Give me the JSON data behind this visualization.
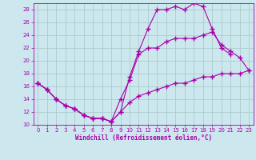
{
  "xlabel": "Windchill (Refroidissement éolien,°C)",
  "bg_color": "#cce8ee",
  "grid_color": "#aacccc",
  "line_color": "#aa00aa",
  "xlim": [
    -0.5,
    23.5
  ],
  "ylim": [
    10,
    29
  ],
  "xticks": [
    0,
    1,
    2,
    3,
    4,
    5,
    6,
    7,
    8,
    9,
    10,
    11,
    12,
    13,
    14,
    15,
    16,
    17,
    18,
    19,
    20,
    21,
    22,
    23
  ],
  "yticks": [
    10,
    12,
    14,
    16,
    18,
    20,
    22,
    24,
    26,
    28
  ],
  "line1_x": [
    0,
    1,
    2,
    3,
    4,
    5,
    6,
    7,
    8,
    9,
    10,
    11,
    12,
    13,
    14,
    15,
    16,
    17,
    18,
    19,
    20,
    21
  ],
  "line1_y": [
    16.5,
    15.5,
    14.0,
    13.0,
    12.5,
    11.5,
    11.0,
    11.0,
    10.5,
    12.0,
    17.5,
    21.5,
    25.0,
    28.0,
    28.0,
    28.5,
    28.0,
    29.0,
    28.5,
    25.0,
    22.0,
    21.0
  ],
  "line2_x": [
    0,
    1,
    2,
    3,
    4,
    5,
    6,
    7,
    8,
    9,
    10,
    11,
    12,
    13,
    14,
    15,
    16,
    17,
    18,
    19,
    20,
    21,
    22,
    23
  ],
  "line2_y": [
    16.5,
    15.5,
    14.0,
    13.0,
    12.5,
    11.5,
    11.0,
    11.0,
    10.5,
    14.0,
    17.0,
    21.0,
    22.0,
    22.0,
    23.0,
    23.5,
    23.5,
    23.5,
    24.0,
    24.5,
    22.5,
    21.5,
    20.5,
    18.5
  ],
  "line3_x": [
    0,
    1,
    2,
    3,
    4,
    5,
    6,
    7,
    8,
    9,
    10,
    11,
    12,
    13,
    14,
    15,
    16,
    17,
    18,
    19,
    20,
    21,
    22,
    23
  ],
  "line3_y": [
    16.5,
    15.5,
    14.0,
    13.0,
    12.5,
    11.5,
    11.0,
    11.0,
    10.5,
    12.0,
    13.5,
    14.5,
    15.0,
    15.5,
    16.0,
    16.5,
    16.5,
    17.0,
    17.5,
    17.5,
    18.0,
    18.0,
    18.0,
    18.5
  ]
}
